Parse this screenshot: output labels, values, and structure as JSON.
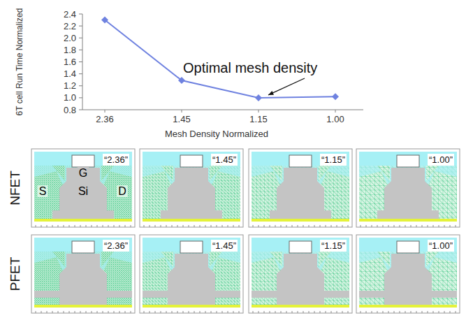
{
  "chart_data": {
    "type": "line",
    "x_label": "Mesh Density Normalized",
    "y_label": "6T cell Run Time Normalized",
    "categories": [
      "2.36",
      "1.45",
      "1.15",
      "1.00"
    ],
    "values": [
      2.3,
      1.29,
      1.0,
      1.02
    ],
    "color": "#6f82e0",
    "marker": "diamond",
    "ylim": [
      0.8,
      2.4
    ],
    "yticks": [
      0.8,
      {
        "value": 1,
        "label": "1.0"
      },
      1.2,
      1.4,
      1.6,
      1.8,
      {
        "value": 2,
        "label": "2.0"
      },
      2.2,
      2.4
    ],
    "annotations": [
      "Optimal mesh density"
    ]
  },
  "device_panels": {
    "rows": [
      {
        "label": "NFET",
        "panels": [
          "“2.36”",
          "“1.45”",
          "“1.15”",
          "“1.00”"
        ]
      },
      {
        "label": "PFET",
        "panels": [
          "“2.36”",
          "“1.45”",
          "“1.15”",
          "“1.00”"
        ]
      }
    ],
    "region_labels": [
      "S",
      "G",
      "Si",
      "D"
    ]
  }
}
